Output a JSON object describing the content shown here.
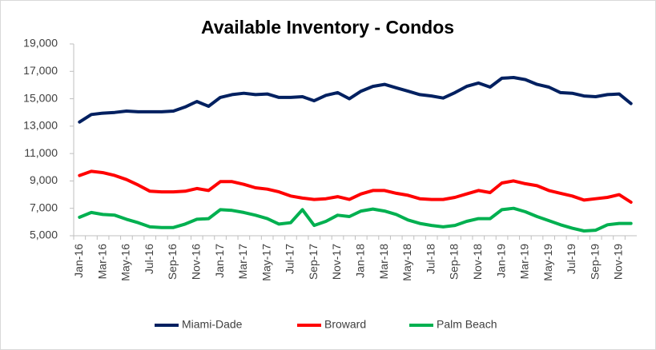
{
  "chart_data": {
    "type": "line",
    "title": "Available Inventory - Condos",
    "categories": [
      "Jan-16",
      null,
      "Mar-16",
      null,
      "May-16",
      null,
      "Jul-16",
      null,
      "Sep-16",
      null,
      "Nov-16",
      null,
      "Jan-17",
      null,
      "Mar-17",
      null,
      "May-17",
      null,
      "Jul-17",
      null,
      "Sep-17",
      null,
      "Nov-17",
      null,
      "Jan-18",
      null,
      "Mar-18",
      null,
      "May-18",
      null,
      "Jul-18",
      null,
      "Sep-18",
      null,
      "Nov-18",
      null,
      "Jan-19",
      null,
      "Mar-19",
      null,
      "May-19",
      null,
      "Jul-19",
      null,
      "Sep-19",
      null,
      "Nov-19",
      null
    ],
    "series": [
      {
        "name": "Miami-Dade",
        "color": "#002060",
        "values": [
          13300,
          13850,
          13950,
          14000,
          14100,
          14050,
          14050,
          14050,
          14100,
          14400,
          14800,
          14450,
          15100,
          15300,
          15400,
          15300,
          15350,
          15100,
          15100,
          15150,
          14850,
          15250,
          15450,
          15000,
          15550,
          15900,
          16050,
          15800,
          15550,
          15300,
          15200,
          15050,
          15450,
          15900,
          16150,
          15850,
          16500,
          16550,
          16400,
          16050,
          15850,
          15450,
          15400,
          15200,
          15150,
          15300,
          15350,
          14650
        ]
      },
      {
        "name": "Broward",
        "color": "#ff0000",
        "values": [
          9400,
          9700,
          9600,
          9400,
          9100,
          8700,
          8250,
          8200,
          8200,
          8250,
          8450,
          8300,
          8950,
          8950,
          8750,
          8500,
          8400,
          8200,
          7900,
          7750,
          7650,
          7700,
          7850,
          7650,
          8050,
          8300,
          8300,
          8100,
          7950,
          7700,
          7650,
          7650,
          7800,
          8050,
          8300,
          8150,
          8850,
          9000,
          8800,
          8650,
          8300,
          8100,
          7900,
          7600,
          7700,
          7800,
          8000,
          7450
        ]
      },
      {
        "name": "Palm Beach",
        "color": "#00b050",
        "values": [
          6350,
          6700,
          6550,
          6500,
          6200,
          5950,
          5650,
          5600,
          5600,
          5850,
          6200,
          6250,
          6900,
          6850,
          6700,
          6500,
          6250,
          5850,
          5950,
          6900,
          5750,
          6050,
          6500,
          6400,
          6800,
          6950,
          6800,
          6550,
          6150,
          5900,
          5750,
          5650,
          5750,
          6050,
          6250,
          6250,
          6900,
          7000,
          6750,
          6400,
          6100,
          5800,
          5550,
          5350,
          5400,
          5800,
          5900,
          5900
        ]
      }
    ],
    "ylim": [
      5000,
      19000
    ],
    "yticks": [
      {
        "value": 5000,
        "label": "5,000"
      },
      {
        "value": 7000,
        "label": "7,000"
      },
      {
        "value": 9000,
        "label": "9,000"
      },
      {
        "value": 11000,
        "label": "11,000"
      },
      {
        "value": 13000,
        "label": "13,000"
      },
      {
        "value": 15000,
        "label": "15,000"
      },
      {
        "value": 17000,
        "label": "17,000"
      },
      {
        "value": 19000,
        "label": "19,000"
      }
    ],
    "grid": false,
    "legend": "bottom"
  }
}
